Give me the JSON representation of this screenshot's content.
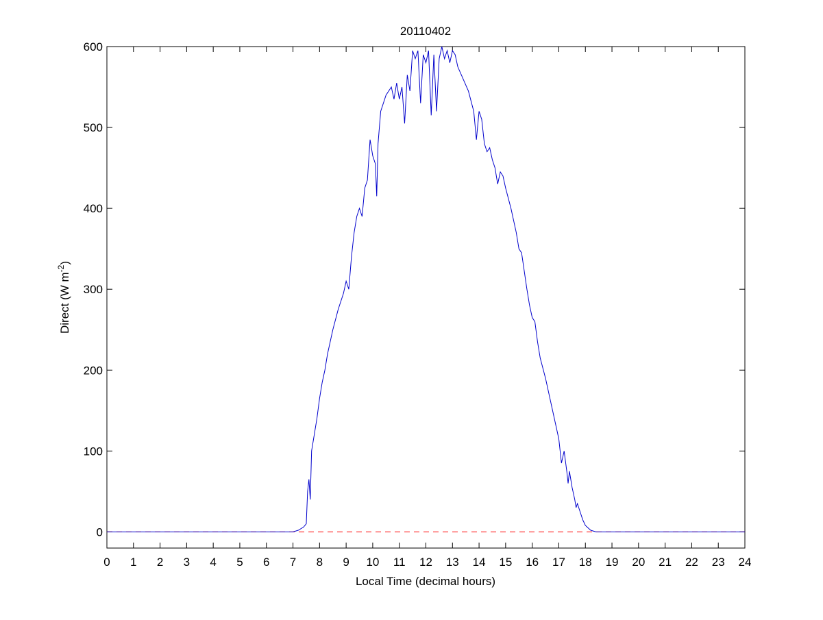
{
  "chart_data": {
    "type": "line",
    "title": "20110402",
    "xlabel": "Local Time (decimal hours)",
    "ylabel_parts": [
      "Direct (W m",
      "-2",
      ")"
    ],
    "xlim": [
      0,
      24
    ],
    "ylim": [
      -20,
      600
    ],
    "xticks": [
      0,
      1,
      2,
      3,
      4,
      5,
      6,
      7,
      8,
      9,
      10,
      11,
      12,
      13,
      14,
      15,
      16,
      17,
      18,
      19,
      20,
      21,
      22,
      23,
      24
    ],
    "yticks": [
      0,
      100,
      200,
      300,
      400,
      500,
      600
    ],
    "reference_line": {
      "value": 0,
      "color": "#ff0000",
      "dashed": true
    },
    "series": [
      {
        "color": "#0000cc",
        "x": [
          0,
          7,
          7.2,
          7.4,
          7.5,
          7.55,
          7.6,
          7.65,
          7.7,
          7.8,
          7.9,
          8,
          8.1,
          8.2,
          8.3,
          8.5,
          8.7,
          8.9,
          9,
          9.1,
          9.2,
          9.3,
          9.4,
          9.5,
          9.6,
          9.7,
          9.8,
          9.9,
          10,
          10.1,
          10.15,
          10.2,
          10.3,
          10.5,
          10.7,
          10.8,
          10.9,
          11,
          11.1,
          11.2,
          11.3,
          11.4,
          11.5,
          11.6,
          11.7,
          11.8,
          11.9,
          12,
          12.1,
          12.2,
          12.3,
          12.4,
          12.5,
          12.6,
          12.7,
          12.8,
          12.9,
          13,
          13.1,
          13.2,
          13.4,
          13.6,
          13.8,
          13.9,
          14,
          14.1,
          14.2,
          14.3,
          14.4,
          14.5,
          14.6,
          14.7,
          14.8,
          14.9,
          15,
          15.2,
          15.4,
          15.5,
          15.6,
          15.8,
          15.9,
          16,
          16.1,
          16.2,
          16.3,
          16.5,
          16.7,
          16.9,
          17,
          17.1,
          17.2,
          17.3,
          17.35,
          17.4,
          17.5,
          17.6,
          17.65,
          17.7,
          17.8,
          17.9,
          18,
          18.2,
          18.4,
          24
        ],
        "values": [
          0,
          0,
          2,
          6,
          10,
          50,
          65,
          40,
          100,
          120,
          140,
          165,
          185,
          200,
          220,
          250,
          275,
          295,
          310,
          300,
          340,
          370,
          390,
          400,
          390,
          425,
          435,
          485,
          465,
          455,
          415,
          480,
          520,
          540,
          550,
          535,
          555,
          535,
          550,
          505,
          565,
          545,
          595,
          585,
          595,
          530,
          590,
          580,
          595,
          515,
          590,
          520,
          585,
          600,
          585,
          595,
          580,
          595,
          590,
          575,
          560,
          545,
          520,
          485,
          520,
          510,
          480,
          470,
          475,
          460,
          450,
          430,
          445,
          440,
          425,
          400,
          370,
          350,
          345,
          300,
          280,
          265,
          260,
          235,
          215,
          190,
          160,
          130,
          115,
          85,
          100,
          75,
          60,
          75,
          55,
          40,
          30,
          35,
          25,
          15,
          8,
          2,
          0,
          0
        ]
      }
    ]
  }
}
